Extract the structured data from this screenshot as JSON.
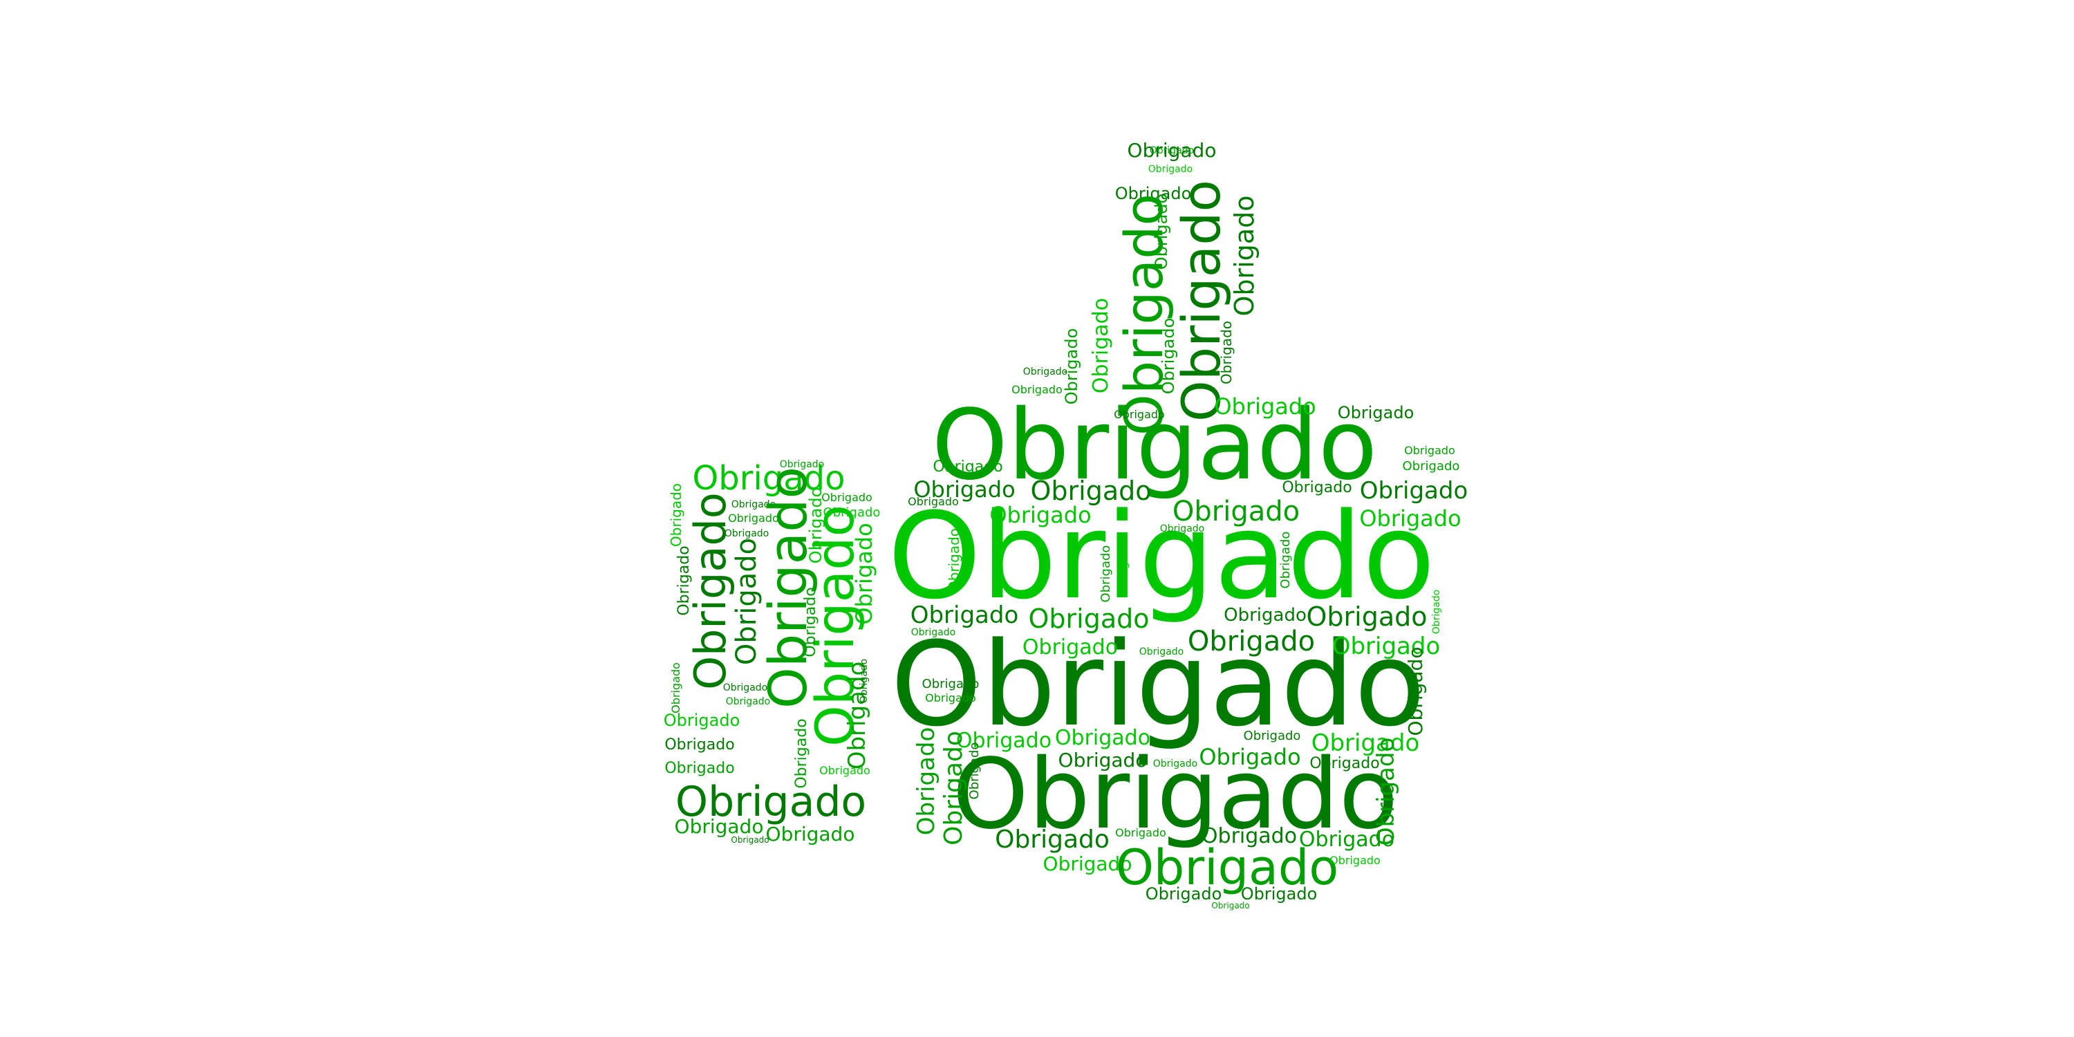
{
  "word": "Obrigado",
  "colors": {
    "dark": "#007a00",
    "mid": "#00a000",
    "light": "#00c800",
    "background": "#ffffff"
  },
  "shape": "thumbs-up"
}
